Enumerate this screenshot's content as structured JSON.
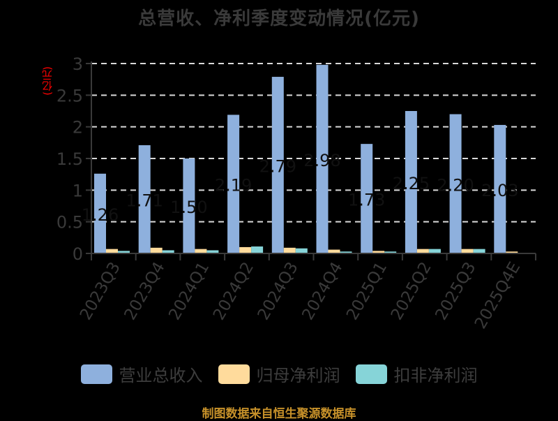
{
  "title": "总营收、净利季度变动情况(亿元)",
  "y_unit_label": "(亿元)",
  "source_note": "制图数据来自恒生聚源数据库",
  "colors": {
    "revenue": "#8eb0dd",
    "net_profit": "#ffdb9c",
    "deducted_profit": "#86d4d8",
    "axis": "#3a3a3a",
    "grid": "#d9d9d9",
    "unit_label": "#ff0000",
    "source": "#c8922a"
  },
  "legend": [
    {
      "label": "营业总收入",
      "color": "#8eb0dd"
    },
    {
      "label": "归母净利润",
      "color": "#ffdb9c"
    },
    {
      "label": "扣非净利润",
      "color": "#86d4d8"
    }
  ],
  "chart_data": {
    "type": "bar",
    "title": "总营收、净利季度变动情况(亿元)",
    "xlabel": "",
    "ylabel": "(亿元)",
    "ylim": [
      0,
      3
    ],
    "yticks": [
      0,
      0.5,
      1,
      1.5,
      2,
      2.5,
      3
    ],
    "grid": true,
    "legend_position": "bottom",
    "categories": [
      "2023Q3",
      "2023Q4",
      "2024Q1",
      "2024Q2",
      "2024Q3",
      "2024Q4",
      "2025Q1",
      "2025Q2",
      "2025Q3",
      "2025Q4E"
    ],
    "series": [
      {
        "name": "营业总收入",
        "values": [
          1.26,
          1.71,
          1.5,
          2.19,
          2.79,
          2.98,
          1.73,
          2.25,
          2.2,
          2.03
        ],
        "data_labels": [
          "1.26",
          "1.71",
          "1.50",
          "2.19",
          "2.79",
          "2.98",
          "1.73",
          "2.25",
          "2.20",
          "2.03"
        ]
      },
      {
        "name": "归母净利润",
        "values": [
          0.07,
          0.09,
          0.07,
          0.1,
          0.09,
          0.06,
          0.04,
          0.07,
          0.07,
          0.03
        ]
      },
      {
        "name": "扣非净利润",
        "values": [
          0.04,
          0.05,
          0.05,
          0.11,
          0.08,
          0.03,
          0.03,
          0.07,
          0.07,
          0.01
        ]
      }
    ]
  }
}
